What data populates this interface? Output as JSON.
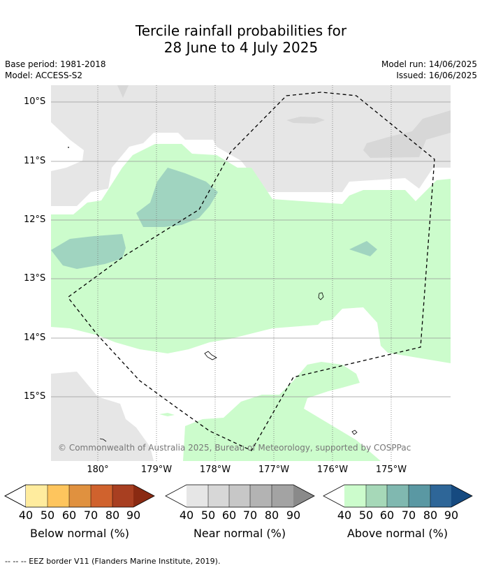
{
  "title_line1": "Tercile rainfall probabilities for",
  "title_line2": "28 June to 4 July 2025",
  "base_period": "Base period: 1981-2018",
  "model": "Model: ACCESS-S2",
  "model_run": "Model run: 14/06/2025",
  "issued": "Issued: 16/06/2025",
  "lat_labels": [
    "10°S",
    "11°S",
    "12°S",
    "13°S",
    "14°S",
    "15°S"
  ],
  "lon_labels": [
    "180°",
    "179°W",
    "178°W",
    "177°W",
    "176°W",
    "175°W"
  ],
  "copyright": "© Commonwealth of Australia 2025, Bureau of Meteorology, supported by COSPPac",
  "colorbars": [
    {
      "label": "Below normal (%)",
      "ticks": [
        "40",
        "50",
        "60",
        "70",
        "80",
        "90"
      ],
      "colors": [
        "#ffec9e",
        "#fec55d",
        "#e0913f",
        "#d0622d",
        "#a83f21",
        "#8a2a12"
      ]
    },
    {
      "label": "Near normal (%)",
      "ticks": [
        "40",
        "50",
        "60",
        "70",
        "80",
        "90"
      ],
      "colors": [
        "#e6e6e6",
        "#d7d7d7",
        "#c7c7c7",
        "#b3b3b3",
        "#a3a3a3",
        "#8a8a8a"
      ]
    },
    {
      "label": "Above normal (%)",
      "ticks": [
        "40",
        "50",
        "60",
        "70",
        "80",
        "90"
      ],
      "colors": [
        "#ccfccc",
        "#a6d8b8",
        "#80b8b0",
        "#5a98a3",
        "#2e6698",
        "#164a80"
      ]
    }
  ],
  "footnote": "--  --  -- EEZ border V11 (Flanders Marine Institute, 2019)."
}
